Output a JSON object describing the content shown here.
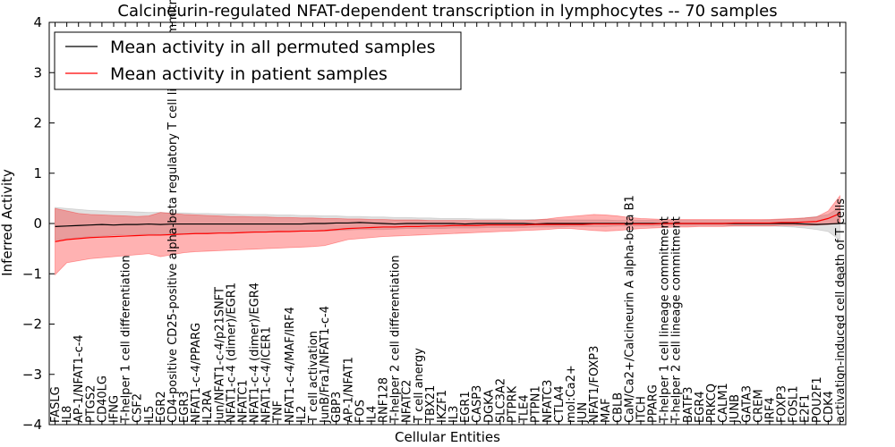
{
  "chart_data": {
    "type": "line",
    "title": "Calcineurin-regulated NFAT-dependent transcription in lymphocytes -- 70 samples",
    "xlabel": "Cellular Entities",
    "ylabel": "Inferred Activity",
    "ylim": [
      -4,
      4
    ],
    "yticks": [
      -4,
      -3,
      -2,
      -1,
      0,
      1,
      2,
      3,
      4
    ],
    "legend_position": "top-left",
    "categories": [
      "FASLG",
      "IL8",
      "AP-1/NFAT1-c-4",
      "PTGS2",
      "CD40LG",
      "IFNG",
      "T-helper 1 cell differentiation",
      "CSF2",
      "IL5",
      "EGR2",
      "CD4-positive CD25-positive alpha-beta regulatory T cell lineage commitment",
      "EGR3",
      "NFAT1-c-4/PPARG",
      "IL2RA",
      "Jun/NFAT1-c-4/p21SNFT",
      "NFAT1-c-4 (dimer)/EGR1",
      "NFATC1",
      "NFAT1-c-4 (dimer)/EGR4",
      "NFAT1-c-4/ICER1",
      "TNF",
      "NFAT1-c-4/MAF/IRF4",
      "IL2",
      "T cell activation",
      "JunB/Fra1/NFAT1-c-4",
      "GBP3",
      "AP-1/NFAT1",
      "FOS",
      "IL4",
      "RNF128",
      "T-helper 2 cell differentiation",
      "NFATC2",
      "T cell anergy",
      "TBX21",
      "IKZF1",
      "IL3",
      "EGR1",
      "CASP3",
      "DGKA",
      "SLC3A2",
      "PTPRK",
      "TLE4",
      "PTPN1",
      "NFATC3",
      "CTLA4",
      "mol:Ca2+",
      "JUN",
      "NFAT1/FOXP3",
      "MAF",
      "CBLB",
      "CaM/Ca2+/Calcineurin A alpha-beta B1",
      "ITCH",
      "PPARG",
      "T-helper 1 cell lineage commitment",
      "T-helper 2 cell lineage commitment",
      "BATF3",
      "EGR4",
      "PRKCQ",
      "CALM1",
      "JUNB",
      "GATA3",
      "CREM",
      "IRF4",
      "FOXP3",
      "FOSL1",
      "E2F1",
      "POU2F1",
      "CDK4",
      "activation-induced cell death of T cells"
    ],
    "series": [
      {
        "name": "Mean activity in all permuted samples",
        "color": "#000000",
        "band_color": "#999999",
        "values": [
          -0.06,
          -0.05,
          -0.04,
          -0.03,
          -0.02,
          -0.03,
          -0.02,
          -0.02,
          -0.01,
          -0.02,
          -0.01,
          -0.01,
          -0.01,
          -0.01,
          -0.01,
          -0.01,
          -0.01,
          -0.01,
          -0.01,
          -0.01,
          -0.01,
          -0.01,
          0.0,
          0.0,
          0.01,
          0.01,
          0.02,
          0.01,
          0.0,
          -0.01,
          0.0,
          0.0,
          0.0,
          0.0,
          0.0,
          -0.01,
          0.0,
          0.0,
          0.0,
          0.0,
          0.0,
          -0.01,
          0.0,
          0.0,
          0.0,
          0.0,
          0.0,
          0.0,
          0.0,
          0.0,
          0.0,
          0.0,
          0.0,
          0.0,
          0.0,
          0.0,
          0.0,
          0.0,
          0.0,
          0.0,
          0.0,
          0.0,
          0.0,
          0.0,
          -0.01,
          -0.02,
          -0.01,
          0.0
        ],
        "lower": [
          -0.33,
          -0.3,
          -0.28,
          -0.26,
          -0.25,
          -0.23,
          -0.22,
          -0.22,
          -0.21,
          -0.22,
          -0.2,
          -0.2,
          -0.2,
          -0.19,
          -0.19,
          -0.18,
          -0.18,
          -0.18,
          -0.17,
          -0.17,
          -0.16,
          -0.16,
          -0.15,
          -0.15,
          -0.14,
          -0.13,
          -0.12,
          -0.12,
          -0.12,
          -0.11,
          -0.1,
          -0.1,
          -0.1,
          -0.1,
          -0.09,
          -0.09,
          -0.09,
          -0.08,
          -0.08,
          -0.08,
          -0.08,
          -0.07,
          -0.07,
          -0.07,
          -0.06,
          -0.06,
          -0.06,
          -0.06,
          -0.05,
          -0.05,
          -0.05,
          -0.05,
          -0.04,
          -0.04,
          -0.04,
          -0.04,
          -0.04,
          -0.04,
          -0.05,
          -0.05,
          -0.05,
          -0.05,
          -0.06,
          -0.07,
          -0.09,
          -0.12,
          -0.16,
          -0.33
        ],
        "upper": [
          0.32,
          0.3,
          0.28,
          0.26,
          0.25,
          0.24,
          0.24,
          0.23,
          0.22,
          0.22,
          0.21,
          0.21,
          0.2,
          0.2,
          0.19,
          0.19,
          0.18,
          0.18,
          0.18,
          0.17,
          0.17,
          0.16,
          0.16,
          0.15,
          0.15,
          0.14,
          0.14,
          0.13,
          0.13,
          0.12,
          0.12,
          0.11,
          0.11,
          0.1,
          0.1,
          0.1,
          0.09,
          0.09,
          0.09,
          0.08,
          0.08,
          0.08,
          0.08,
          0.07,
          0.07,
          0.07,
          0.07,
          0.07,
          0.06,
          0.06,
          0.06,
          0.06,
          0.06,
          0.06,
          0.06,
          0.06,
          0.06,
          0.06,
          0.06,
          0.06,
          0.06,
          0.07,
          0.08,
          0.09,
          0.11,
          0.14,
          0.18,
          0.32
        ]
      },
      {
        "name": "Mean activity in patient samples",
        "color": "#ff0000",
        "band_color": "#ff0000",
        "values": [
          -0.36,
          -0.32,
          -0.3,
          -0.28,
          -0.27,
          -0.26,
          -0.25,
          -0.24,
          -0.23,
          -0.23,
          -0.22,
          -0.21,
          -0.2,
          -0.2,
          -0.19,
          -0.19,
          -0.18,
          -0.17,
          -0.17,
          -0.16,
          -0.16,
          -0.15,
          -0.15,
          -0.14,
          -0.12,
          -0.1,
          -0.09,
          -0.08,
          -0.07,
          -0.07,
          -0.06,
          -0.06,
          -0.05,
          -0.05,
          -0.04,
          -0.04,
          -0.04,
          -0.03,
          -0.03,
          -0.03,
          -0.03,
          -0.02,
          -0.02,
          -0.02,
          -0.02,
          -0.02,
          -0.01,
          -0.01,
          -0.01,
          -0.01,
          -0.01,
          -0.01,
          0.0,
          0.0,
          0.0,
          0.0,
          0.0,
          0.0,
          0.01,
          0.01,
          0.01,
          0.01,
          0.02,
          0.02,
          0.03,
          0.04,
          0.1,
          0.2
        ],
        "lower": [
          -1.02,
          -0.78,
          -0.74,
          -0.7,
          -0.68,
          -0.66,
          -0.64,
          -0.62,
          -0.6,
          -0.66,
          -0.62,
          -0.58,
          -0.56,
          -0.55,
          -0.54,
          -0.53,
          -0.52,
          -0.51,
          -0.5,
          -0.49,
          -0.48,
          -0.47,
          -0.46,
          -0.44,
          -0.38,
          -0.32,
          -0.3,
          -0.28,
          -0.26,
          -0.25,
          -0.24,
          -0.23,
          -0.22,
          -0.21,
          -0.2,
          -0.19,
          -0.18,
          -0.17,
          -0.16,
          -0.15,
          -0.14,
          -0.13,
          -0.12,
          -0.1,
          -0.1,
          -0.12,
          -0.14,
          -0.15,
          -0.14,
          -0.12,
          -0.1,
          -0.09,
          -0.08,
          -0.07,
          -0.07,
          -0.06,
          -0.06,
          -0.06,
          -0.05,
          -0.05,
          -0.05,
          -0.05,
          -0.04,
          -0.04,
          -0.04,
          -0.03,
          -0.02,
          0.0
        ],
        "upper": [
          0.3,
          0.25,
          0.2,
          0.18,
          0.17,
          0.16,
          0.15,
          0.14,
          0.15,
          0.22,
          0.2,
          0.18,
          0.17,
          0.16,
          0.15,
          0.14,
          0.14,
          0.13,
          0.13,
          0.12,
          0.12,
          0.11,
          0.11,
          0.1,
          0.1,
          0.09,
          0.09,
          0.08,
          0.08,
          0.07,
          0.07,
          0.07,
          0.06,
          0.06,
          0.06,
          0.06,
          0.06,
          0.06,
          0.06,
          0.06,
          0.06,
          0.07,
          0.09,
          0.12,
          0.14,
          0.16,
          0.18,
          0.17,
          0.15,
          0.12,
          0.1,
          0.09,
          0.08,
          0.08,
          0.08,
          0.08,
          0.08,
          0.08,
          0.08,
          0.08,
          0.08,
          0.08,
          0.09,
          0.1,
          0.11,
          0.13,
          0.25,
          0.55
        ]
      }
    ]
  }
}
